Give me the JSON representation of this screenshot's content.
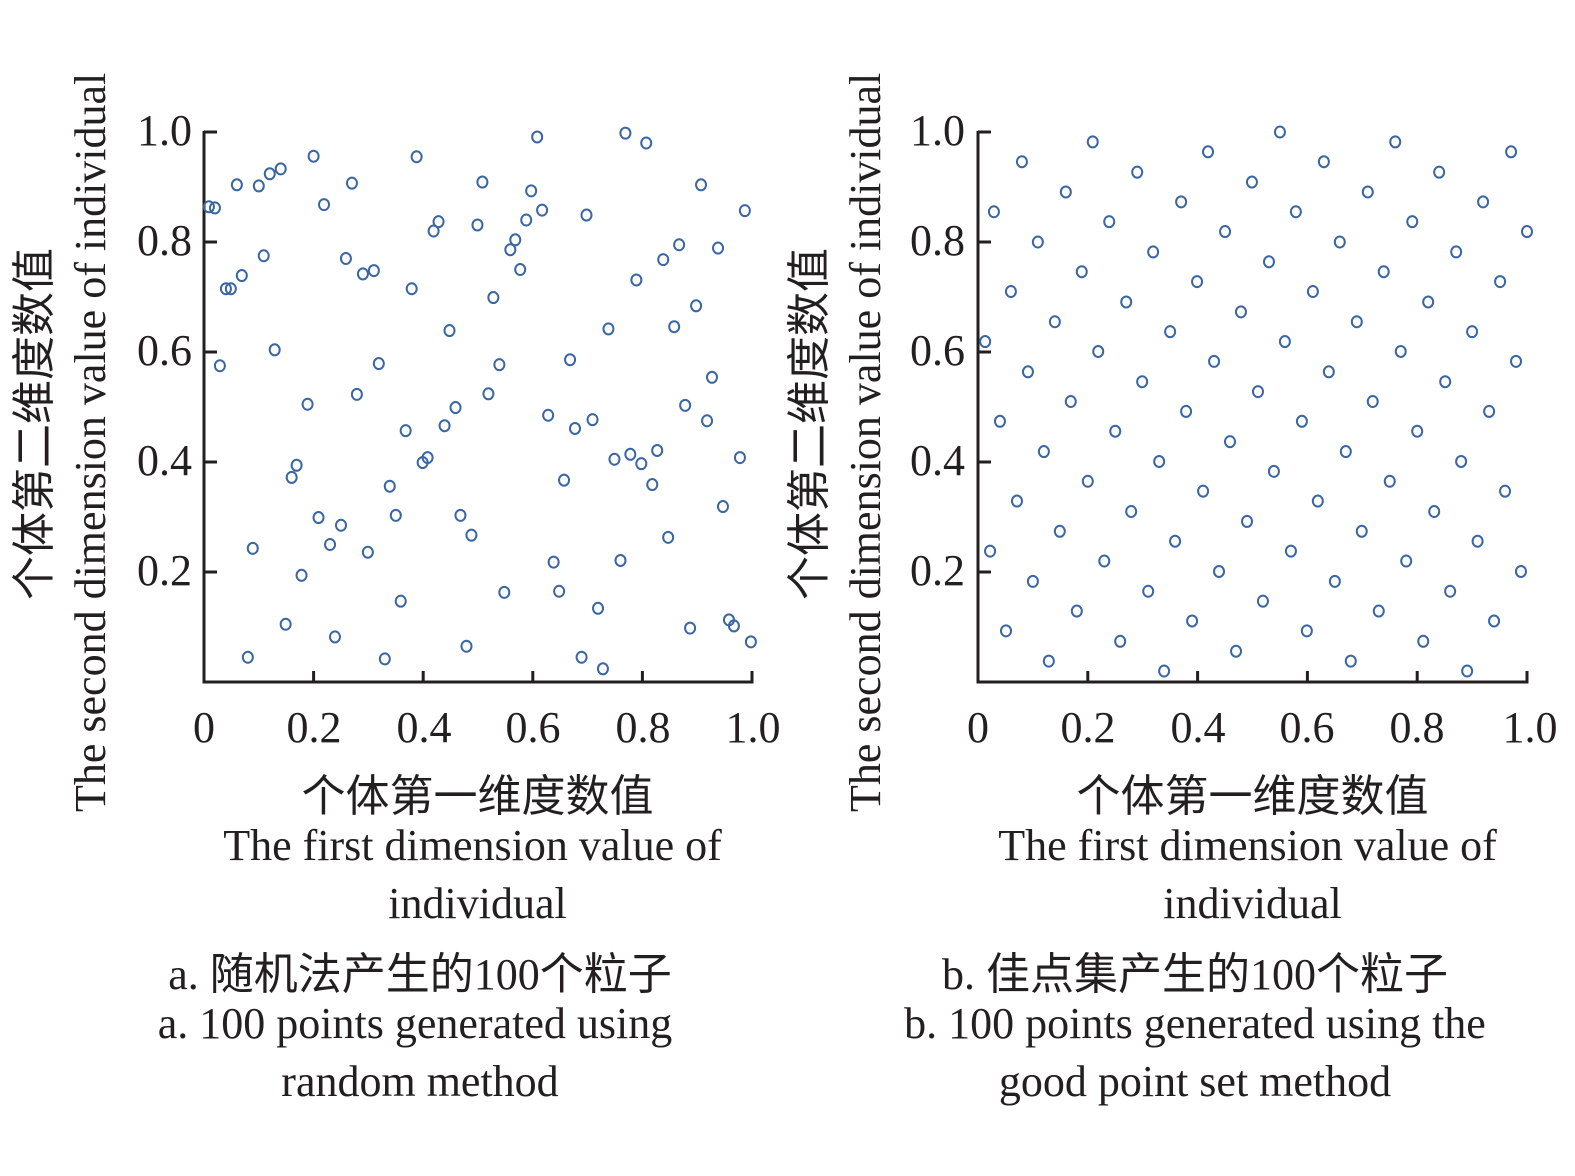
{
  "chart_data": [
    {
      "type": "scatter",
      "panel": "a",
      "xlabel_cn": "个体第一维度数值",
      "xlabel_en_line1": "The first dimension value of",
      "xlabel_en_line2": "individual",
      "ylabel_cn": "个体第二维度数值",
      "ylabel_en": "The second dimension value of individual",
      "caption_cn": "a. 随机法产生的100个粒子",
      "caption_en_line1": "a. 100 points generated using",
      "caption_en_line2": "random method",
      "xlim": [
        0,
        1.0
      ],
      "ylim": [
        0,
        1.0
      ],
      "xticks": [
        "0",
        "0.2",
        "0.4",
        "0.6",
        "0.8",
        "1.0"
      ],
      "yticks": [
        "0.2",
        "0.4",
        "0.6",
        "0.8",
        "1.0"
      ],
      "marker": "open-circle",
      "color": "#3a66a3",
      "grid": false,
      "points": [
        [
          0.009,
          0.864
        ],
        [
          0.02,
          0.862
        ],
        [
          0.029,
          0.575
        ],
        [
          0.04,
          0.715
        ],
        [
          0.049,
          0.715
        ],
        [
          0.06,
          0.904
        ],
        [
          0.069,
          0.739
        ],
        [
          0.089,
          0.243
        ],
        [
          0.08,
          0.045
        ],
        [
          0.1,
          0.902
        ],
        [
          0.109,
          0.775
        ],
        [
          0.12,
          0.924
        ],
        [
          0.129,
          0.604
        ],
        [
          0.14,
          0.933
        ],
        [
          0.149,
          0.105
        ],
        [
          0.16,
          0.372
        ],
        [
          0.169,
          0.394
        ],
        [
          0.178,
          0.194
        ],
        [
          0.189,
          0.505
        ],
        [
          0.2,
          0.956
        ],
        [
          0.209,
          0.299
        ],
        [
          0.219,
          0.868
        ],
        [
          0.23,
          0.25
        ],
        [
          0.239,
          0.082
        ],
        [
          0.25,
          0.285
        ],
        [
          0.259,
          0.77
        ],
        [
          0.27,
          0.907
        ],
        [
          0.279,
          0.523
        ],
        [
          0.29,
          0.742
        ],
        [
          0.299,
          0.236
        ],
        [
          0.31,
          0.748
        ],
        [
          0.319,
          0.579
        ],
        [
          0.33,
          0.042
        ],
        [
          0.339,
          0.356
        ],
        [
          0.35,
          0.303
        ],
        [
          0.359,
          0.147
        ],
        [
          0.368,
          0.457
        ],
        [
          0.379,
          0.715
        ],
        [
          0.388,
          0.955
        ],
        [
          0.399,
          0.399
        ],
        [
          0.408,
          0.408
        ],
        [
          0.419,
          0.82
        ],
        [
          0.428,
          0.837
        ],
        [
          0.439,
          0.466
        ],
        [
          0.448,
          0.639
        ],
        [
          0.459,
          0.499
        ],
        [
          0.468,
          0.303
        ],
        [
          0.479,
          0.065
        ],
        [
          0.488,
          0.267
        ],
        [
          0.499,
          0.831
        ],
        [
          0.508,
          0.909
        ],
        [
          0.519,
          0.524
        ],
        [
          0.528,
          0.699
        ],
        [
          0.539,
          0.577
        ],
        [
          0.548,
          0.163
        ],
        [
          0.559,
          0.786
        ],
        [
          0.568,
          0.804
        ],
        [
          0.577,
          0.75
        ],
        [
          0.588,
          0.84
        ],
        [
          0.597,
          0.893
        ],
        [
          0.608,
          0.991
        ],
        [
          0.617,
          0.858
        ],
        [
          0.628,
          0.485
        ],
        [
          0.638,
          0.218
        ],
        [
          0.648,
          0.165
        ],
        [
          0.657,
          0.367
        ],
        [
          0.668,
          0.586
        ],
        [
          0.677,
          0.461
        ],
        [
          0.689,
          0.045
        ],
        [
          0.698,
          0.849
        ],
        [
          0.709,
          0.477
        ],
        [
          0.719,
          0.134
        ],
        [
          0.728,
          0.024
        ],
        [
          0.738,
          0.642
        ],
        [
          0.749,
          0.405
        ],
        [
          0.76,
          0.221
        ],
        [
          0.769,
          0.998
        ],
        [
          0.778,
          0.414
        ],
        [
          0.789,
          0.731
        ],
        [
          0.798,
          0.397
        ],
        [
          0.807,
          0.98
        ],
        [
          0.818,
          0.359
        ],
        [
          0.827,
          0.421
        ],
        [
          0.838,
          0.768
        ],
        [
          0.847,
          0.263
        ],
        [
          0.858,
          0.646
        ],
        [
          0.867,
          0.795
        ],
        [
          0.878,
          0.503
        ],
        [
          0.887,
          0.098
        ],
        [
          0.898,
          0.684
        ],
        [
          0.907,
          0.904
        ],
        [
          0.918,
          0.475
        ],
        [
          0.927,
          0.554
        ],
        [
          0.938,
          0.789
        ],
        [
          0.947,
          0.319
        ],
        [
          0.958,
          0.113
        ],
        [
          0.967,
          0.102
        ],
        [
          0.978,
          0.408
        ],
        [
          0.987,
          0.857
        ],
        [
          0.998,
          0.073
        ]
      ]
    },
    {
      "type": "scatter",
      "panel": "b",
      "xlabel_cn": "个体第一维度数值",
      "xlabel_en_line1": "The first dimension value of",
      "xlabel_en_line2": "individual",
      "ylabel_cn": "个体第二维度数值",
      "ylabel_en": "The second dimension value of individual",
      "caption_cn": "b. 佳点集产生的100个粒子",
      "caption_en_line1": "b. 100 points generated using the",
      "caption_en_line2": "good point set method",
      "xlim": [
        0,
        1.0
      ],
      "ylim": [
        0,
        1.0
      ],
      "xticks": [
        "0",
        "0.2",
        "0.4",
        "0.6",
        "0.8",
        "1.0"
      ],
      "yticks": [
        "0.2",
        "0.4",
        "0.6",
        "0.8",
        "1.0"
      ],
      "marker": "open-circle",
      "color": "#3a66a3",
      "grid": false,
      "points": [
        [
          0.013,
          0.619
        ],
        [
          0.029,
          0.855
        ],
        [
          0.022,
          0.238
        ],
        [
          0.04,
          0.474
        ],
        [
          0.051,
          0.093
        ],
        [
          0.06,
          0.71
        ],
        [
          0.071,
          0.329
        ],
        [
          0.08,
          0.946
        ],
        [
          0.091,
          0.564
        ],
        [
          0.1,
          0.183
        ],
        [
          0.109,
          0.8
        ],
        [
          0.12,
          0.419
        ],
        [
          0.129,
          0.038
        ],
        [
          0.14,
          0.655
        ],
        [
          0.149,
          0.274
        ],
        [
          0.16,
          0.891
        ],
        [
          0.169,
          0.51
        ],
        [
          0.18,
          0.129
        ],
        [
          0.189,
          0.746
        ],
        [
          0.2,
          0.365
        ],
        [
          0.209,
          0.982
        ],
        [
          0.219,
          0.601
        ],
        [
          0.23,
          0.22
        ],
        [
          0.239,
          0.837
        ],
        [
          0.25,
          0.456
        ],
        [
          0.259,
          0.074
        ],
        [
          0.27,
          0.691
        ],
        [
          0.279,
          0.31
        ],
        [
          0.29,
          0.927
        ],
        [
          0.299,
          0.546
        ],
        [
          0.31,
          0.165
        ],
        [
          0.319,
          0.782
        ],
        [
          0.33,
          0.401
        ],
        [
          0.339,
          0.02
        ],
        [
          0.35,
          0.637
        ],
        [
          0.359,
          0.256
        ],
        [
          0.37,
          0.873
        ],
        [
          0.379,
          0.492
        ],
        [
          0.39,
          0.111
        ],
        [
          0.399,
          0.728
        ],
        [
          0.41,
          0.347
        ],
        [
          0.419,
          0.964
        ],
        [
          0.43,
          0.583
        ],
        [
          0.439,
          0.201
        ],
        [
          0.45,
          0.819
        ],
        [
          0.459,
          0.437
        ],
        [
          0.47,
          0.056
        ],
        [
          0.479,
          0.673
        ],
        [
          0.49,
          0.292
        ],
        [
          0.499,
          0.909
        ],
        [
          0.51,
          0.528
        ],
        [
          0.519,
          0.147
        ],
        [
          0.53,
          0.764
        ],
        [
          0.539,
          0.383
        ],
        [
          0.55,
          1.0
        ],
        [
          0.559,
          0.619
        ],
        [
          0.57,
          0.238
        ],
        [
          0.579,
          0.855
        ],
        [
          0.59,
          0.474
        ],
        [
          0.599,
          0.093
        ],
        [
          0.61,
          0.71
        ],
        [
          0.619,
          0.329
        ],
        [
          0.63,
          0.946
        ],
        [
          0.639,
          0.564
        ],
        [
          0.65,
          0.183
        ],
        [
          0.659,
          0.8
        ],
        [
          0.67,
          0.419
        ],
        [
          0.679,
          0.038
        ],
        [
          0.69,
          0.655
        ],
        [
          0.699,
          0.274
        ],
        [
          0.71,
          0.891
        ],
        [
          0.719,
          0.51
        ],
        [
          0.73,
          0.129
        ],
        [
          0.739,
          0.746
        ],
        [
          0.75,
          0.365
        ],
        [
          0.76,
          0.982
        ],
        [
          0.77,
          0.601
        ],
        [
          0.78,
          0.22
        ],
        [
          0.791,
          0.837
        ],
        [
          0.8,
          0.456
        ],
        [
          0.811,
          0.074
        ],
        [
          0.82,
          0.691
        ],
        [
          0.831,
          0.31
        ],
        [
          0.84,
          0.927
        ],
        [
          0.851,
          0.546
        ],
        [
          0.86,
          0.165
        ],
        [
          0.871,
          0.782
        ],
        [
          0.88,
          0.401
        ],
        [
          0.891,
          0.02
        ],
        [
          0.9,
          0.637
        ],
        [
          0.91,
          0.256
        ],
        [
          0.92,
          0.873
        ],
        [
          0.931,
          0.492
        ],
        [
          0.94,
          0.111
        ],
        [
          0.951,
          0.728
        ],
        [
          0.96,
          0.347
        ],
        [
          0.971,
          0.964
        ],
        [
          0.98,
          0.583
        ],
        [
          0.989,
          0.201
        ],
        [
          1.0,
          0.819
        ]
      ]
    }
  ]
}
